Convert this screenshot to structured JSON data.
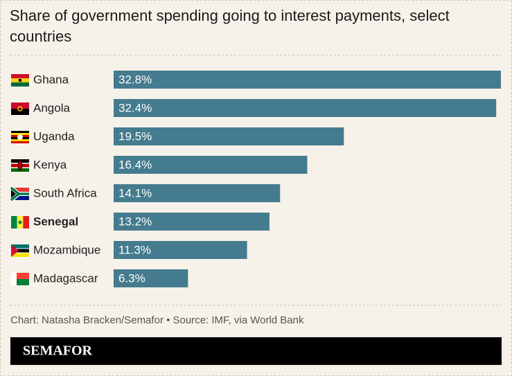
{
  "chart_data": {
    "type": "bar",
    "orientation": "horizontal",
    "title": "Share of government spending going to interest payments, select countries",
    "categories": [
      "Ghana",
      "Angola",
      "Uganda",
      "Kenya",
      "South Africa",
      "Senegal",
      "Mozambique",
      "Madagascar"
    ],
    "values": [
      32.8,
      32.4,
      19.5,
      16.4,
      14.1,
      13.2,
      11.3,
      6.3
    ],
    "value_labels": [
      "32.8%",
      "32.4%",
      "19.5%",
      "16.4%",
      "14.1%",
      "13.2%",
      "11.3%",
      "6.3%"
    ],
    "color": "#457b8e",
    "highlight": "Senegal",
    "source": "Chart: Natasha Bracken/Semafor • Source: IMF, via World Bank",
    "brand": "SEMAFOR"
  }
}
